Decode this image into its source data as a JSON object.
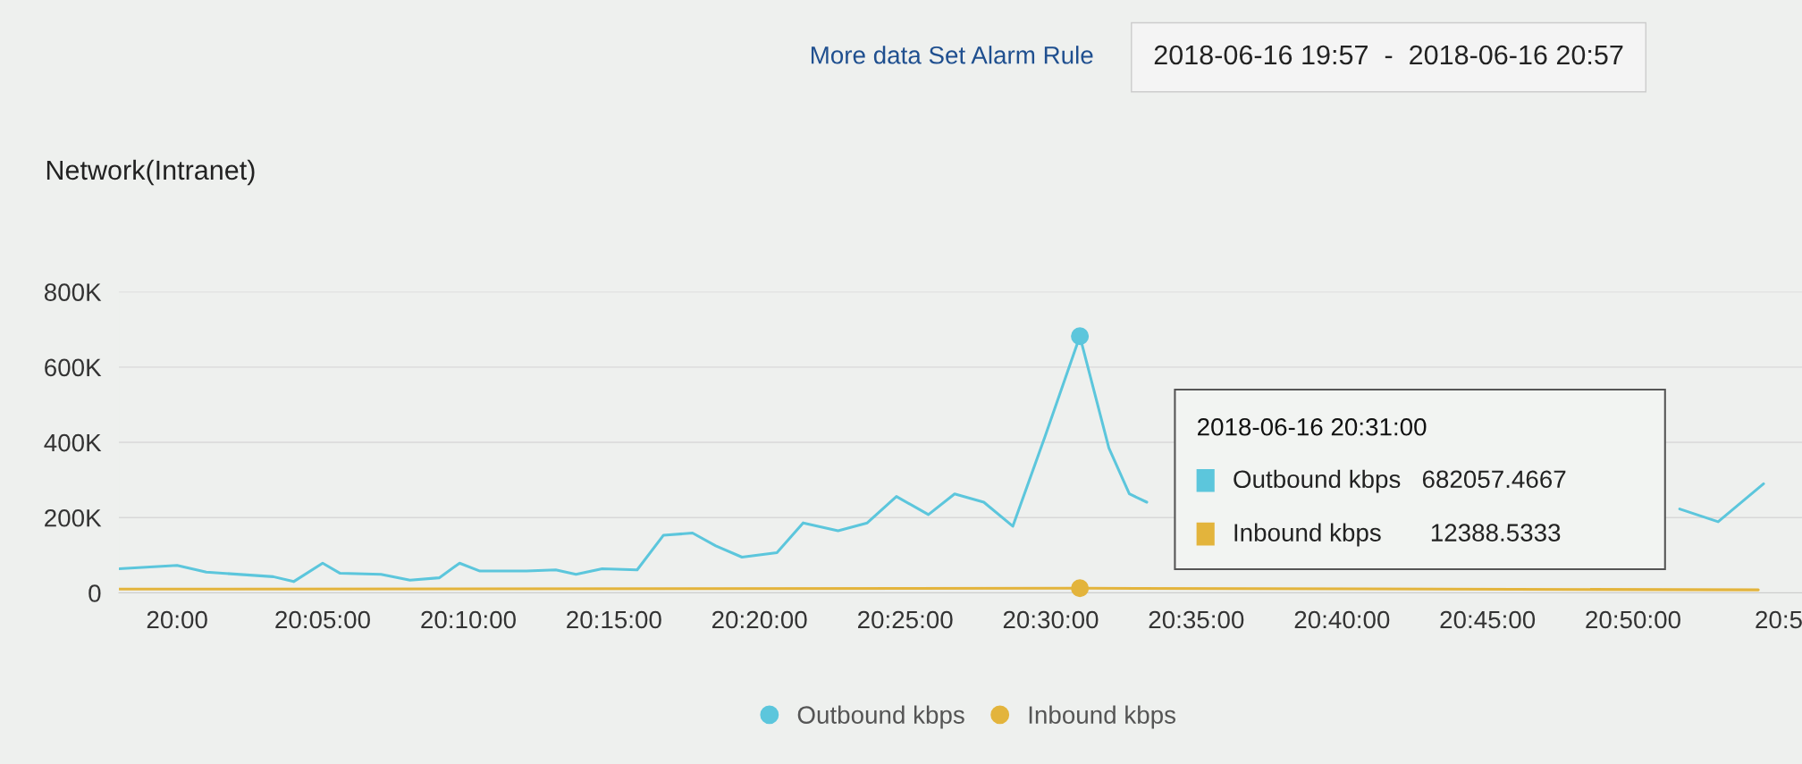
{
  "chart_data": {
    "type": "line",
    "title": "Network(Intranet)",
    "annotations": [
      "More data Set Alarm Rule",
      "2018-06-16 19:57  -  2018-06-16 20:57",
      "2018-06-16 20:31:00",
      "Outbound kbps   682057.4667",
      "Inbound kbps       12388.5333"
    ],
    "series": [
      {
        "name": "Outbound kbps",
        "color": "#5cc6dc",
        "x": [
          19.9667,
          20.0,
          20.0167,
          20.055,
          20.0667,
          20.0833,
          20.0933,
          20.1167,
          20.1333,
          20.15,
          20.1617,
          20.1733,
          20.2,
          20.2167,
          20.2283,
          20.2433,
          20.2633,
          20.2783,
          20.295,
          20.3083,
          20.3233,
          20.3433,
          20.3583,
          20.3783,
          20.395,
          20.4117,
          20.43,
          20.445,
          20.4617,
          20.4783,
          20.4967,
          20.5167,
          20.5333,
          20.545,
          20.555,
          20.7,
          20.86,
          20.882,
          20.908
        ],
        "values": [
          64000,
          73000,
          55000,
          43000,
          30000,
          79000,
          52000,
          49000,
          34000,
          40000,
          79000,
          58000,
          58000,
          61000,
          49000,
          64000,
          61000,
          153000,
          159000,
          125000,
          95000,
          107000,
          186000,
          165000,
          186000,
          256000,
          208000,
          263000,
          241000,
          177000,
          415000,
          682057.4667,
          385000,
          263000,
          241000,
          null,
          223000,
          189000,
          290000
        ]
      },
      {
        "name": "Inbound kbps",
        "color": "#e3b43c",
        "x": [
          19.9667,
          20.5167,
          20.905
        ],
        "values": [
          10000,
          12388.5333,
          8000
        ]
      },
      {
        "type": "scatter",
        "marker": "circle",
        "color": "#5cc6dc",
        "x": [
          20.5167
        ],
        "values": [
          682057.4667
        ]
      },
      {
        "type": "scatter",
        "marker": "circle",
        "color": "#e3b43c",
        "x": [
          20.5167
        ],
        "values": [
          12388.5333
        ]
      }
    ],
    "xlim": [
      19.9667,
      20.93
    ],
    "xticks": [
      {
        "value": 20.0,
        "label": "20:00"
      },
      {
        "value": 20.0833,
        "label": "20:05:00"
      },
      {
        "value": 20.1667,
        "label": "20:10:00"
      },
      {
        "value": 20.25,
        "label": "20:15:00"
      },
      {
        "value": 20.3333,
        "label": "20:20:00"
      },
      {
        "value": 20.4167,
        "label": "20:25:00"
      },
      {
        "value": 20.5,
        "label": "20:30:00"
      },
      {
        "value": 20.5833,
        "label": "20:35:00"
      },
      {
        "value": 20.6667,
        "label": "20:40:00"
      },
      {
        "value": 20.75,
        "label": "20:45:00"
      },
      {
        "value": 20.8333,
        "label": "20:50:00"
      },
      {
        "value": 20.9167,
        "label": "20:5"
      }
    ],
    "ylim": [
      0,
      800000
    ],
    "yticks": [
      {
        "value": 0,
        "label": "0"
      },
      {
        "value": 200000,
        "label": "200K"
      },
      {
        "value": 400000,
        "label": "400K"
      },
      {
        "value": 600000,
        "label": "600K"
      },
      {
        "value": 800000,
        "label": "800K"
      }
    ],
    "grid": "y",
    "legend": "bottom",
    "marker": "none",
    "line_style": "solid"
  }
}
